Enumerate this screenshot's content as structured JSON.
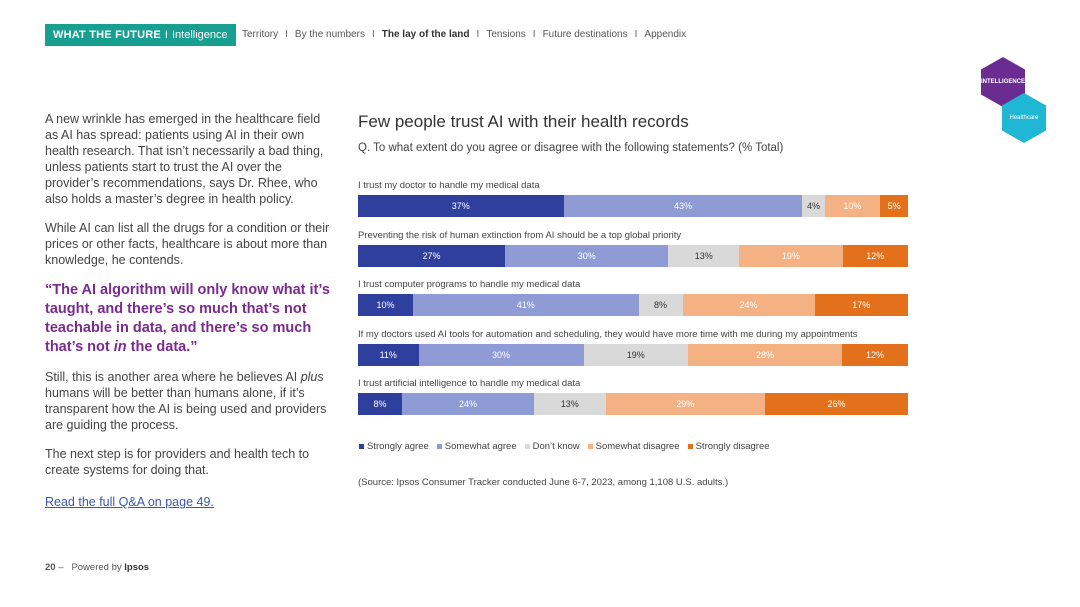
{
  "header": {
    "brand_strong": "WHAT THE FUTURE",
    "brand_sep": "I",
    "brand_sub": "Intelligence",
    "nav": [
      {
        "label": "Territory",
        "active": false
      },
      {
        "label": "By the numbers",
        "active": false
      },
      {
        "label": "The lay of the land",
        "active": true
      },
      {
        "label": "Tensions",
        "active": false
      },
      {
        "label": "Future destinations",
        "active": false
      },
      {
        "label": "Appendix",
        "active": false
      }
    ],
    "nav_divider": "I"
  },
  "badges": {
    "intelligence": "INTELLIGENCE",
    "healthcare": "Healthcare"
  },
  "left": {
    "para1": "A new wrinkle has emerged in the healthcare field as AI has spread: patients using AI in their own health research. That isn’t necessarily a bad thing, unless patients start to trust the AI over the provider’s recommendations, says Dr. Rhee, who also holds a master’s degree in health policy.",
    "para2": "While AI can list all the drugs for a condition or their prices or other facts, healthcare is about more than knowledge, he contends.",
    "quote_a": "“The AI algorithm will only know what it’s taught, and there’s so much that’s not teachable in data, and there’s so much that’s not ",
    "quote_em": "in",
    "quote_b": " the data.”",
    "para3_a": "Still, this is another area where he believes AI ",
    "para3_em": "plus",
    "para3_b": " humans will be better than humans alone, if it’s transparent how the AI is being used and providers are guiding the process.",
    "para4": "The next step is for providers and health tech to create systems for doing that.",
    "link": "Read the full Q&A on page 49."
  },
  "chart_data": {
    "type": "bar",
    "orientation": "horizontal-stacked-100",
    "title": "Few people trust AI with their health records",
    "subtitle": "Q. To what extent do you agree or disagree with the following statements? (% Total)",
    "categories": [
      "I trust my doctor to handle my medical data",
      "Preventing the risk of human extinction from AI should be a top global priority",
      "I trust computer programs to handle my medical data",
      "If my doctors used AI tools for automation and scheduling, they would have more time with me during my appointments",
      "I trust artificial intelligence to handle my medical data"
    ],
    "series": [
      {
        "name": "Strongly agree",
        "color": "#2e3f9e",
        "text_color": "#ffffff",
        "values": [
          37,
          27,
          10,
          11,
          8
        ]
      },
      {
        "name": "Somewhat agree",
        "color": "#8e9bd4",
        "text_color": "#ffffff",
        "values": [
          43,
          30,
          41,
          30,
          24
        ]
      },
      {
        "name": "Don’t know",
        "color": "#d9d9d9",
        "text_color": "#333333",
        "values": [
          4,
          13,
          8,
          19,
          13
        ]
      },
      {
        "name": "Somewhat disagree",
        "color": "#f4b183",
        "text_color": "#ffffff",
        "values": [
          10,
          19,
          24,
          28,
          29
        ]
      },
      {
        "name": "Strongly disagree",
        "color": "#e3711c",
        "text_color": "#ffffff",
        "values": [
          5,
          12,
          17,
          12,
          26
        ]
      }
    ],
    "value_suffix": "%",
    "legend_position": "bottom",
    "source": "(Source: Ipsos Consumer Tracker conducted June 6-7, 2023, among 1,108 U.S. adults.)"
  },
  "footer": {
    "page": "20",
    "dash": "–",
    "powered_by": "Powered by",
    "company": "Ipsos"
  }
}
